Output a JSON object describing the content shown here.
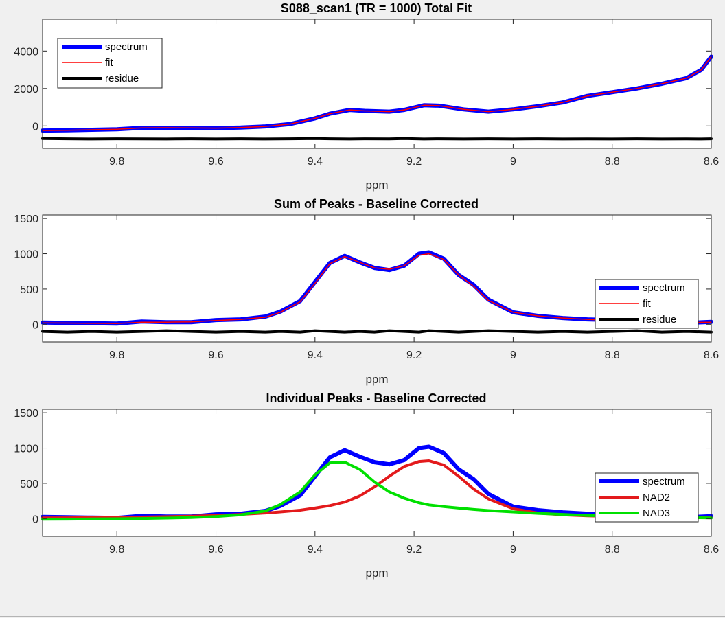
{
  "figure": {
    "background": "#f0f0f0"
  },
  "chart_data": [
    {
      "type": "line",
      "title": "S088_scan1 (TR = 1000) Total Fit",
      "xlabel": "ppm",
      "ylabel": "",
      "xlim": [
        9.95,
        8.6
      ],
      "x_reversed": true,
      "ylim": [
        -1200,
        5700
      ],
      "xticks": [
        9.8,
        9.6,
        9.4,
        9.2,
        9,
        8.8,
        8.6
      ],
      "xtick_labels": [
        "9.8",
        "9.6",
        "9.4",
        "9.2",
        "9",
        "8.8",
        "8.6"
      ],
      "yticks": [
        0,
        2000,
        4000
      ],
      "ytick_labels": [
        "0",
        "2000",
        "4000"
      ],
      "grid": false,
      "legend_position": "top-left",
      "x": [
        9.95,
        9.9,
        9.85,
        9.8,
        9.75,
        9.7,
        9.65,
        9.6,
        9.55,
        9.5,
        9.45,
        9.4,
        9.37,
        9.33,
        9.3,
        9.25,
        9.22,
        9.18,
        9.15,
        9.1,
        9.05,
        9.0,
        8.95,
        8.9,
        8.85,
        8.8,
        8.75,
        8.7,
        8.65,
        8.62,
        8.6
      ],
      "series": [
        {
          "name": "spectrum",
          "color": "#0000ff",
          "values": [
            -250,
            -240,
            -210,
            -180,
            -110,
            -100,
            -110,
            -120,
            -90,
            -30,
            100,
            400,
            650,
            850,
            800,
            760,
            850,
            1100,
            1080,
            880,
            760,
            880,
            1050,
            1250,
            1600,
            1800,
            2000,
            2250,
            2550,
            3000,
            3700
          ]
        },
        {
          "name": "fit",
          "color": "#ff0000",
          "values": [
            -250,
            -240,
            -210,
            -180,
            -110,
            -100,
            -110,
            -120,
            -90,
            -30,
            100,
            400,
            650,
            850,
            800,
            760,
            850,
            1100,
            1080,
            880,
            760,
            880,
            1050,
            1250,
            1600,
            1800,
            2000,
            2250,
            2550,
            3000,
            3700
          ]
        },
        {
          "name": "residue",
          "color": "#000000",
          "values": [
            -680,
            -690,
            -700,
            -690,
            -695,
            -700,
            -690,
            -700,
            -690,
            -700,
            -690,
            -680,
            -690,
            -700,
            -690,
            -695,
            -680,
            -700,
            -690,
            -700,
            -690,
            -700,
            -690,
            -700,
            -695,
            -700,
            -690,
            -700,
            -695,
            -700,
            -690
          ]
        }
      ]
    },
    {
      "type": "line",
      "title": "Sum of Peaks - Baseline Corrected",
      "xlabel": "ppm",
      "ylabel": "",
      "xlim": [
        9.95,
        8.6
      ],
      "x_reversed": true,
      "ylim": [
        -250,
        1550
      ],
      "xticks": [
        9.8,
        9.6,
        9.4,
        9.2,
        9,
        8.8,
        8.6
      ],
      "xtick_labels": [
        "9.8",
        "9.6",
        "9.4",
        "9.2",
        "9",
        "8.8",
        "8.6"
      ],
      "yticks": [
        0,
        500,
        1000,
        1500
      ],
      "ytick_labels": [
        "0",
        "500",
        "1000",
        "1500"
      ],
      "grid": false,
      "legend_position": "right",
      "x": [
        9.95,
        9.9,
        9.85,
        9.8,
        9.75,
        9.7,
        9.65,
        9.6,
        9.55,
        9.5,
        9.47,
        9.43,
        9.4,
        9.37,
        9.34,
        9.31,
        9.28,
        9.25,
        9.22,
        9.19,
        9.17,
        9.14,
        9.11,
        9.08,
        9.05,
        9.0,
        8.95,
        8.9,
        8.85,
        8.8,
        8.75,
        8.7,
        8.65,
        8.6
      ],
      "series": [
        {
          "name": "spectrum",
          "color": "#0000ff",
          "values": [
            25,
            20,
            15,
            10,
            40,
            30,
            30,
            60,
            70,
            110,
            180,
            330,
            600,
            870,
            970,
            880,
            800,
            770,
            830,
            1000,
            1020,
            930,
            700,
            560,
            350,
            170,
            120,
            90,
            70,
            60,
            40,
            50,
            20,
            35
          ]
        },
        {
          "name": "fit",
          "color": "#ff0000",
          "values": [
            20,
            18,
            14,
            12,
            30,
            30,
            35,
            55,
            70,
            100,
            170,
            320,
            580,
            860,
            960,
            880,
            800,
            780,
            830,
            980,
            1000,
            920,
            700,
            540,
            340,
            170,
            120,
            90,
            70,
            55,
            40,
            40,
            25,
            30
          ]
        },
        {
          "name": "residue",
          "color": "#000000",
          "values": [
            -100,
            -110,
            -100,
            -110,
            -100,
            -90,
            -100,
            -110,
            -100,
            -110,
            -100,
            -110,
            -90,
            -100,
            -110,
            -100,
            -110,
            -90,
            -100,
            -110,
            -90,
            -100,
            -110,
            -100,
            -90,
            -100,
            -110,
            -100,
            -110,
            -100,
            -90,
            -110,
            -100,
            -110
          ]
        }
      ]
    },
    {
      "type": "line",
      "title": "Individual Peaks - Baseline Corrected",
      "xlabel": "ppm",
      "ylabel": "",
      "xlim": [
        9.95,
        8.6
      ],
      "x_reversed": true,
      "ylim": [
        -250,
        1550
      ],
      "xticks": [
        9.8,
        9.6,
        9.4,
        9.2,
        9,
        8.8,
        8.6
      ],
      "xtick_labels": [
        "9.8",
        "9.6",
        "9.4",
        "9.2",
        "9",
        "8.8",
        "8.6"
      ],
      "yticks": [
        0,
        500,
        1000,
        1500
      ],
      "ytick_labels": [
        "0",
        "500",
        "1000",
        "1500"
      ],
      "grid": false,
      "legend_position": "right",
      "x": [
        9.95,
        9.9,
        9.85,
        9.8,
        9.75,
        9.7,
        9.65,
        9.6,
        9.55,
        9.5,
        9.47,
        9.43,
        9.4,
        9.37,
        9.34,
        9.31,
        9.28,
        9.25,
        9.22,
        9.19,
        9.17,
        9.14,
        9.11,
        9.08,
        9.05,
        9.0,
        8.95,
        8.9,
        8.85,
        8.8,
        8.75,
        8.7,
        8.65,
        8.6
      ],
      "series": [
        {
          "name": "spectrum",
          "color": "#0000ff",
          "values": [
            25,
            20,
            15,
            10,
            40,
            30,
            30,
            60,
            70,
            110,
            180,
            330,
            600,
            870,
            970,
            880,
            800,
            770,
            830,
            1000,
            1020,
            930,
            700,
            560,
            350,
            170,
            120,
            90,
            70,
            60,
            40,
            50,
            20,
            35
          ]
        },
        {
          "name": "NAD2",
          "color": "#e31a1c",
          "values": [
            10,
            12,
            15,
            18,
            22,
            28,
            35,
            45,
            60,
            80,
            95,
            120,
            150,
            185,
            235,
            320,
            450,
            600,
            740,
            810,
            820,
            760,
            600,
            420,
            280,
            140,
            80,
            55,
            40,
            30,
            25,
            20,
            15,
            12
          ]
        },
        {
          "name": "NAD3",
          "color": "#00e000",
          "values": [
            -10,
            -8,
            -5,
            -2,
            2,
            8,
            15,
            30,
            55,
            110,
            200,
            380,
            620,
            790,
            800,
            700,
            520,
            380,
            290,
            225,
            195,
            170,
            150,
            130,
            115,
            95,
            75,
            60,
            45,
            35,
            28,
            22,
            15,
            10
          ]
        }
      ]
    }
  ]
}
